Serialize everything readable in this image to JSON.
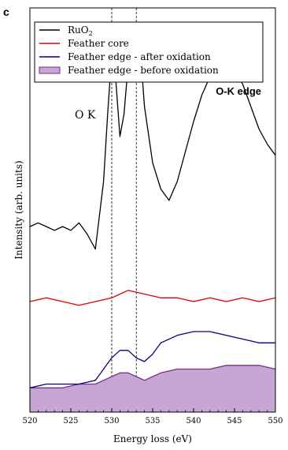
{
  "panel_label": "c",
  "chart_data": {
    "type": "line",
    "title": "",
    "xlabel": "Energy loss (eV)",
    "ylabel": "Intensity (arb. units)",
    "xlim": [
      520,
      550
    ],
    "x_ticks": [
      "520",
      "525",
      "530",
      "535",
      "540",
      "545",
      "550"
    ],
    "edge_label": "O-K edge",
    "peak_annotation": "O K",
    "reference_lines_x": [
      530,
      533
    ],
    "legend": {
      "placement": "top-left",
      "entries": [
        {
          "name": "RuO",
          "subscript": "2",
          "color": "#000000",
          "style": "line"
        },
        {
          "name": "Feather core",
          "color": "#e00000",
          "style": "line"
        },
        {
          "name": "Feather edge - after oxidation",
          "color": "#00008b",
          "style": "line"
        },
        {
          "name": "Feather edge - before oxidation",
          "color": "#7b2d8e",
          "fill": "#c6a6d2",
          "style": "area"
        }
      ]
    },
    "series": [
      {
        "name": "RuO2",
        "color": "#000000",
        "x": [
          520,
          521,
          522,
          523,
          524,
          525,
          526,
          527,
          528,
          529,
          529.5,
          530,
          530.5,
          531,
          531.5,
          532,
          532.5,
          533,
          533.5,
          534,
          535,
          536,
          537,
          538,
          539,
          540,
          541,
          542,
          543,
          544,
          545,
          546,
          547,
          548,
          549,
          550
        ],
        "y": [
          0.48,
          0.49,
          0.48,
          0.47,
          0.48,
          0.47,
          0.49,
          0.46,
          0.42,
          0.6,
          0.78,
          0.94,
          0.87,
          0.72,
          0.78,
          0.91,
          0.99,
          1.0,
          0.95,
          0.8,
          0.65,
          0.58,
          0.55,
          0.6,
          0.68,
          0.76,
          0.83,
          0.88,
          0.9,
          0.92,
          0.89,
          0.86,
          0.8,
          0.74,
          0.7,
          0.67
        ]
      },
      {
        "name": "Feather core",
        "color": "#e00000",
        "x": [
          520,
          522,
          524,
          526,
          528,
          530,
          531,
          532,
          534,
          536,
          538,
          540,
          542,
          544,
          546,
          548,
          550
        ],
        "y": [
          0.28,
          0.29,
          0.28,
          0.27,
          0.28,
          0.29,
          0.3,
          0.31,
          0.3,
          0.29,
          0.29,
          0.28,
          0.29,
          0.28,
          0.29,
          0.28,
          0.29
        ]
      },
      {
        "name": "Feather edge - after oxidation",
        "color": "#00008b",
        "x": [
          520,
          522,
          524,
          526,
          528,
          529,
          530,
          531,
          532,
          533,
          534,
          535,
          536,
          538,
          540,
          542,
          544,
          546,
          548,
          550
        ],
        "y": [
          0.05,
          0.06,
          0.06,
          0.06,
          0.07,
          0.1,
          0.13,
          0.15,
          0.15,
          0.13,
          0.12,
          0.14,
          0.17,
          0.19,
          0.2,
          0.2,
          0.19,
          0.18,
          0.17,
          0.17
        ]
      },
      {
        "name": "Feather edge - before oxidation",
        "color": "#7b2d8e",
        "fill": "#c6a6d2",
        "x": [
          520,
          522,
          524,
          526,
          528,
          529,
          530,
          531,
          532,
          533,
          534,
          535,
          536,
          538,
          540,
          542,
          544,
          546,
          548,
          550
        ],
        "y": [
          0.05,
          0.05,
          0.05,
          0.06,
          0.06,
          0.07,
          0.08,
          0.09,
          0.09,
          0.08,
          0.07,
          0.08,
          0.09,
          0.1,
          0.1,
          0.1,
          0.11,
          0.11,
          0.11,
          0.1
        ]
      }
    ]
  }
}
